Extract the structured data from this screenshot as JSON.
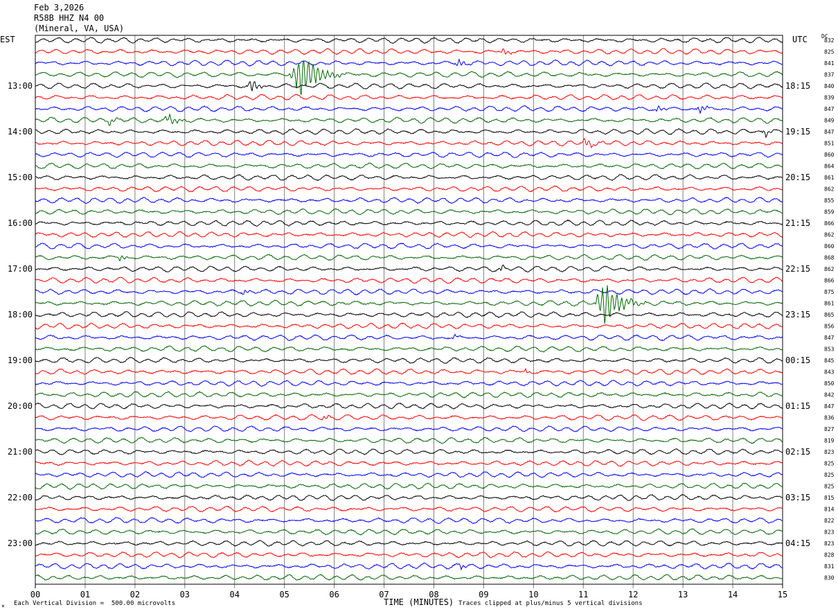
{
  "header": {
    "date": "Feb 3,2026",
    "station": "R58B HHZ N4 00",
    "location": "(Mineral, VA, USA)",
    "left_zone": "EST",
    "right_zone": "UTC",
    "dc_label": "DC"
  },
  "footer": {
    "scale_note": "Each Vertical Division =  500.00 microvolts",
    "axis_title": "TIME (MINUTES)",
    "clip_note": "Traces clipped at plus/minus 5 vertical divisions"
  },
  "colors": {
    "trace_cycle": [
      "#000000",
      "#ff0000",
      "#0000ff",
      "#006600"
    ],
    "grid": "#808080"
  },
  "chart_data": {
    "type": "seismogram-helicorder",
    "x_range": [
      0,
      15
    ],
    "x_ticks": [
      "00",
      "01",
      "02",
      "03",
      "04",
      "05",
      "06",
      "07",
      "08",
      "09",
      "10",
      "11",
      "12",
      "13",
      "14",
      "15"
    ],
    "traces_per_hour": 4,
    "num_traces": 48,
    "left_hour_labels": [
      "13:00",
      "14:00",
      "15:00",
      "16:00",
      "17:00",
      "18:00",
      "19:00",
      "20:00",
      "21:00",
      "22:00",
      "23:00"
    ],
    "right_hour_labels": [
      "18:15",
      "19:15",
      "20:15",
      "21:15",
      "22:15",
      "23:15",
      "00:15",
      "01:15",
      "02:15",
      "03:15",
      "04:15"
    ],
    "hour_label_first_trace": 4,
    "dc_offsets": [
      832,
      825,
      841,
      837,
      840,
      839,
      847,
      849,
      847,
      851,
      860,
      864,
      861,
      862,
      855,
      859,
      866,
      862,
      860,
      868,
      862,
      866,
      875,
      861,
      865,
      856,
      847,
      853,
      845,
      843,
      850,
      842,
      847,
      836,
      827,
      819,
      823,
      825,
      825,
      825,
      815,
      814,
      822,
      823,
      823,
      828,
      831,
      830
    ],
    "events": [
      {
        "trace": 3,
        "minute": 5.35,
        "amp": 6,
        "dur": 0.9,
        "clipped": true
      },
      {
        "trace": 4,
        "minute": 4.35,
        "amp": 1.8,
        "dur": 0.35
      },
      {
        "trace": 7,
        "minute": 2.7,
        "amp": 1.2,
        "dur": 0.5
      },
      {
        "trace": 7,
        "minute": 1.5,
        "amp": 1.0,
        "dur": 0.3
      },
      {
        "trace": 6,
        "minute": 13.35,
        "amp": 1.2,
        "dur": 0.3
      },
      {
        "trace": 6,
        "minute": 12.5,
        "amp": 1.0,
        "dur": 0.25
      },
      {
        "trace": 8,
        "minute": 14.65,
        "amp": 1.4,
        "dur": 0.2
      },
      {
        "trace": 9,
        "minute": 11.05,
        "amp": 1.4,
        "dur": 0.35
      },
      {
        "trace": 1,
        "minute": 9.4,
        "amp": 1.0,
        "dur": 0.3
      },
      {
        "trace": 2,
        "minute": 8.5,
        "amp": 1.0,
        "dur": 0.3
      },
      {
        "trace": 20,
        "minute": 9.35,
        "amp": 1.2,
        "dur": 0.15
      },
      {
        "trace": 19,
        "minute": 1.7,
        "amp": 1.0,
        "dur": 0.25
      },
      {
        "trace": 22,
        "minute": 4.2,
        "amp": 0.9,
        "dur": 0.2
      },
      {
        "trace": 23,
        "minute": 11.45,
        "amp": 6,
        "dur": 0.8,
        "clipped": true
      },
      {
        "trace": 26,
        "minute": 8.4,
        "amp": 1.0,
        "dur": 0.15
      },
      {
        "trace": 29,
        "minute": 9.85,
        "amp": 0.9,
        "dur": 0.15
      },
      {
        "trace": 33,
        "minute": 5.8,
        "amp": 0.9,
        "dur": 0.25
      },
      {
        "trace": 46,
        "minute": 8.55,
        "amp": 0.8,
        "dur": 0.3
      }
    ]
  }
}
